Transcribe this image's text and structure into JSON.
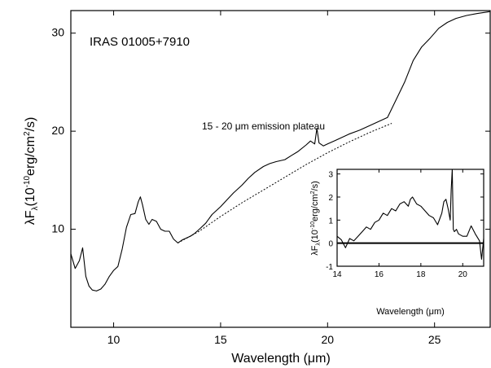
{
  "chart_data": [
    {
      "type": "line",
      "title": "IRAS 01005+7910",
      "xlabel": "Wavelength (μm)",
      "ylabel": "λF",
      "ylabel_sub": "λ",
      "ylabel_unit_pre": "(10",
      "ylabel_unit_exp": "-10",
      "ylabel_unit_mid": "erg/cm",
      "ylabel_unit_exp2": "2",
      "ylabel_unit_post": "/s)",
      "xlim": [
        8,
        27.6
      ],
      "ylim": [
        0,
        32.3
      ],
      "xticks": [
        10,
        15,
        20,
        25
      ],
      "xtick_labels": [
        "10",
        "15",
        "20",
        "25"
      ],
      "yticks": [
        10,
        20,
        30
      ],
      "ytick_labels": [
        "10",
        "20",
        "30"
      ],
      "annotation": "15 - 20 μm emission plateau",
      "series": [
        {
          "style": "solid",
          "x": [
            8.0,
            8.2,
            8.4,
            8.55,
            8.7,
            8.85,
            9.0,
            9.2,
            9.4,
            9.6,
            9.8,
            10.0,
            10.2,
            10.4,
            10.6,
            10.8,
            11.0,
            11.15,
            11.25,
            11.35,
            11.5,
            11.65,
            11.8,
            12.0,
            12.2,
            12.4,
            12.6,
            12.8,
            13.0,
            13.2,
            13.4,
            13.6,
            13.8,
            14.0,
            14.3,
            14.6,
            15.0,
            15.3,
            15.6,
            16.0,
            16.3,
            16.6,
            17.0,
            17.3,
            17.6,
            18.0,
            18.3,
            18.6,
            19.0,
            19.2,
            19.4,
            19.5,
            19.6,
            19.8,
            20.0,
            20.3,
            20.6,
            21.0,
            21.5,
            22.0,
            22.5,
            22.8,
            23.2,
            23.6,
            24.0,
            24.4,
            24.8,
            25.2,
            25.6,
            26.0,
            26.5,
            27.0,
            27.6
          ],
          "y": [
            7.5,
            6.0,
            6.8,
            8.1,
            5.2,
            4.2,
            3.8,
            3.7,
            3.9,
            4.4,
            5.2,
            5.8,
            6.2,
            8.0,
            10.2,
            11.5,
            11.6,
            12.8,
            13.3,
            12.5,
            11.0,
            10.5,
            11.0,
            10.8,
            10.0,
            9.8,
            9.8,
            9.0,
            8.6,
            8.9,
            9.1,
            9.3,
            9.6,
            10.0,
            10.6,
            11.5,
            12.3,
            13.0,
            13.7,
            14.5,
            15.2,
            15.8,
            16.4,
            16.7,
            16.9,
            17.1,
            17.5,
            17.9,
            18.6,
            19.0,
            18.7,
            20.3,
            18.8,
            18.5,
            18.7,
            19.0,
            19.3,
            19.7,
            20.1,
            20.6,
            21.1,
            21.4,
            23.2,
            25.0,
            27.2,
            28.6,
            29.5,
            30.5,
            31.1,
            31.5,
            31.8,
            32.0,
            32.2
          ]
        },
        {
          "style": "dotted",
          "x": [
            13.0,
            14.0,
            15.0,
            16.0,
            17.0,
            18.0,
            19.0,
            20.0,
            21.0,
            22.0,
            23.0
          ],
          "y": [
            8.6,
            9.8,
            11.3,
            12.7,
            14.0,
            15.3,
            16.6,
            17.8,
            18.9,
            19.9,
            20.8
          ]
        }
      ]
    },
    {
      "type": "line",
      "title": "",
      "xlabel": "Wavelength (μm)",
      "ylabel": "λF",
      "ylabel_sub": "λ",
      "ylabel_unit_pre": "(10",
      "ylabel_unit_exp": "-10",
      "ylabel_unit_mid": "erg/cm",
      "ylabel_unit_exp2": "2",
      "ylabel_unit_post": "/s)",
      "xlim": [
        14,
        21
      ],
      "ylim": [
        -1,
        3.2
      ],
      "xticks": [
        14,
        16,
        18,
        20
      ],
      "xtick_labels": [
        "14",
        "16",
        "18",
        "20"
      ],
      "yticks": [
        -1,
        0,
        1,
        2,
        3
      ],
      "ytick_labels": [
        "-1",
        "0",
        "1",
        "2",
        "3"
      ],
      "baseline": 0,
      "series": [
        {
          "style": "solid",
          "x": [
            14.0,
            14.2,
            14.4,
            14.6,
            14.8,
            15.0,
            15.2,
            15.4,
            15.6,
            15.8,
            16.0,
            16.2,
            16.4,
            16.6,
            16.8,
            17.0,
            17.2,
            17.4,
            17.5,
            17.6,
            17.8,
            18.0,
            18.2,
            18.4,
            18.6,
            18.8,
            19.0,
            19.1,
            19.2,
            19.3,
            19.4,
            19.45,
            19.5,
            19.55,
            19.6,
            19.7,
            19.8,
            20.0,
            20.2,
            20.4,
            20.6,
            20.8,
            20.9,
            21.0
          ],
          "y": [
            0.3,
            0.15,
            -0.2,
            0.2,
            0.1,
            0.3,
            0.5,
            0.7,
            0.6,
            0.9,
            1.0,
            1.3,
            1.2,
            1.5,
            1.4,
            1.7,
            1.8,
            1.6,
            1.9,
            2.0,
            1.7,
            1.6,
            1.4,
            1.2,
            1.1,
            0.8,
            1.3,
            1.8,
            1.9,
            1.5,
            1.0,
            2.3,
            3.2,
            0.6,
            0.5,
            0.6,
            0.4,
            0.3,
            0.3,
            0.75,
            0.4,
            0.1,
            -0.7,
            0.2
          ]
        }
      ]
    }
  ]
}
